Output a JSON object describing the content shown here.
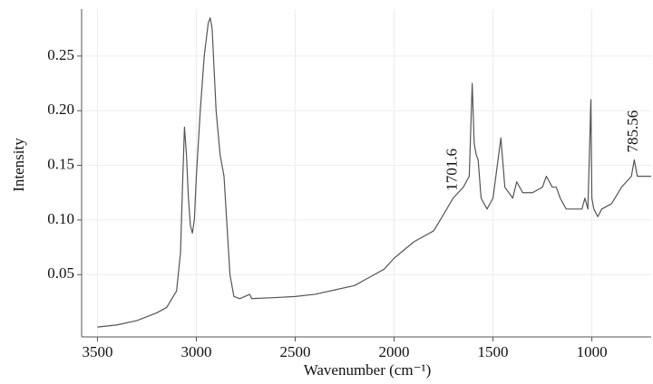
{
  "chart_data": {
    "type": "line",
    "xlabel": "Wavenumber (cm⁻¹)",
    "ylabel": "Intensity",
    "xlim": [
      3580,
      700
    ],
    "ylim": [
      -0.007,
      0.293
    ],
    "xticks": [
      3500,
      3000,
      2500,
      2000,
      1500,
      1000
    ],
    "yticks": [
      0.05,
      {
        "value": 0.1,
        "label": "0.10"
      },
      0.15,
      {
        "value": 0.2,
        "label": "0.20"
      },
      0.25
    ],
    "grid": true,
    "x": [
      3500,
      3400,
      3300,
      3200,
      3150,
      3100,
      3080,
      3070,
      3060,
      3050,
      3040,
      3030,
      3020,
      3010,
      3000,
      2980,
      2960,
      2940,
      2930,
      2920,
      2900,
      2880,
      2870,
      2860,
      2850,
      2830,
      2810,
      2780,
      2730,
      2720,
      2600,
      2500,
      2400,
      2300,
      2200,
      2150,
      2100,
      2050,
      2000,
      1900,
      1800,
      1750,
      1701.6,
      1650,
      1620,
      1605,
      1595,
      1585,
      1575,
      1560,
      1530,
      1500,
      1460,
      1440,
      1400,
      1380,
      1350,
      1300,
      1250,
      1230,
      1200,
      1180,
      1160,
      1130,
      1100,
      1050,
      1035,
      1020,
      1005,
      1000,
      990,
      970,
      950,
      900,
      850,
      800,
      785.56,
      770,
      720,
      700
    ],
    "series": [
      {
        "color": "#555555",
        "values": [
          0.002,
          0.004,
          0.008,
          0.015,
          0.02,
          0.035,
          0.07,
          0.13,
          0.185,
          0.16,
          0.12,
          0.095,
          0.088,
          0.1,
          0.14,
          0.2,
          0.25,
          0.28,
          0.285,
          0.275,
          0.2,
          0.16,
          0.15,
          0.14,
          0.11,
          0.05,
          0.03,
          0.028,
          0.032,
          0.028,
          0.029,
          0.03,
          0.032,
          0.036,
          0.04,
          0.045,
          0.05,
          0.055,
          0.065,
          0.08,
          0.09,
          0.105,
          0.12,
          0.13,
          0.14,
          0.225,
          0.17,
          0.16,
          0.155,
          0.12,
          0.11,
          0.12,
          0.175,
          0.13,
          0.12,
          0.135,
          0.125,
          0.125,
          0.13,
          0.14,
          0.13,
          0.13,
          0.12,
          0.11,
          0.11,
          0.11,
          0.12,
          0.11,
          0.21,
          0.12,
          0.11,
          0.103,
          0.11,
          0.115,
          0.13,
          0.14,
          0.155,
          0.14,
          0.14,
          0.14
        ]
      }
    ],
    "annotations": [
      {
        "x": 1701.6,
        "label": "1701.6"
      },
      {
        "x": 785.56,
        "label": "785.56"
      }
    ]
  }
}
